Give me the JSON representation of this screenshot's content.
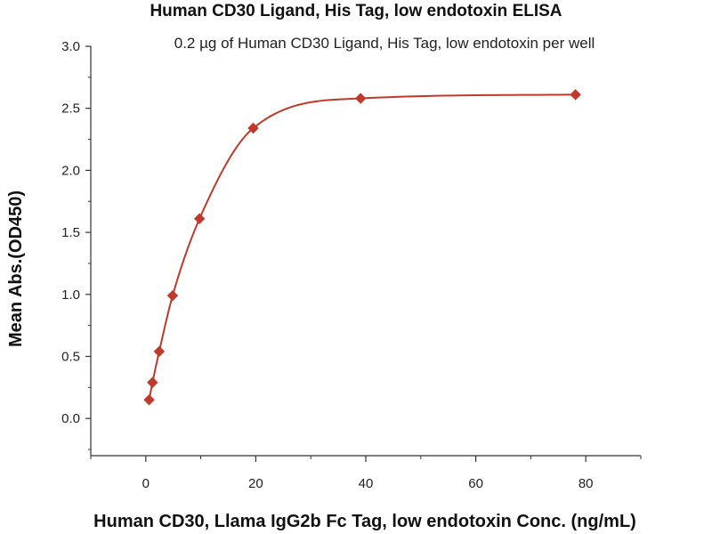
{
  "chart_data": {
    "type": "scatter",
    "title": "Human CD30 Ligand, His Tag, low endotoxin ELISA",
    "subtitle": "0.2 µg of Human CD30 Ligand, His Tag, low endotoxin per well",
    "xlabel": "Human CD30, Llama IgG2b Fc Tag, low endotoxin Conc. (ng/mL)",
    "ylabel": "Mean Abs.(OD450)",
    "xlim": [
      -10,
      90
    ],
    "ylim": [
      -0.3,
      3.0
    ],
    "xticks": [
      0,
      20,
      40,
      60,
      80
    ],
    "xtick_labels": [
      "0",
      "20",
      "40",
      "60",
      "80"
    ],
    "yticks": [
      0.0,
      0.5,
      1.0,
      1.5,
      2.0,
      2.5,
      3.0
    ],
    "ytick_labels": [
      "0.0",
      "0.5",
      "1.0",
      "1.5",
      "2.0",
      "2.5",
      "3.0"
    ],
    "grid": false,
    "series": [
      {
        "marker": "diamond",
        "color": "#c0392b",
        "x": [
          0.61,
          1.22,
          2.44,
          4.88,
          9.77,
          19.53,
          39.06,
          78.13
        ],
        "y": [
          0.15,
          0.29,
          0.54,
          0.99,
          1.61,
          2.34,
          2.58,
          2.61
        ],
        "fit_curve": true
      }
    ],
    "colors": {
      "series": "#c0392b",
      "axis": "#333333"
    }
  }
}
